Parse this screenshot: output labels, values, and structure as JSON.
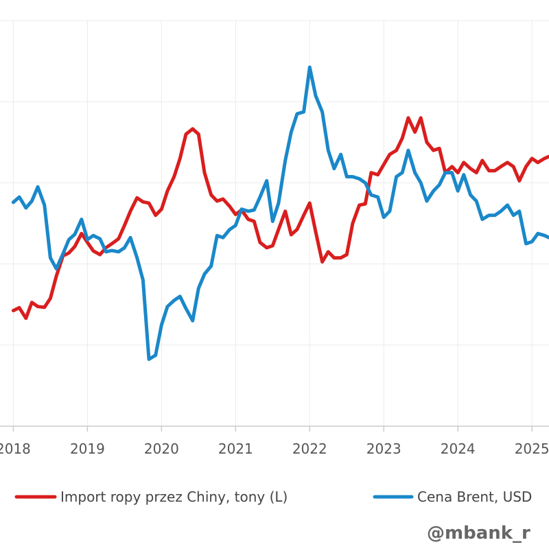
{
  "chart_data": {
    "type": "line",
    "title": "",
    "xlabel": "",
    "ylabel": "",
    "x_range": [
      2017.82,
      2025.23
    ],
    "x_ticks": [
      {
        "value": 2018,
        "label": "2018"
      },
      {
        "value": 2019,
        "label": "2019"
      },
      {
        "value": 2020,
        "label": "2020"
      },
      {
        "value": 2021,
        "label": "2021"
      },
      {
        "value": 2022,
        "label": "2022"
      },
      {
        "value": 2023,
        "label": "2023"
      },
      {
        "value": 2024,
        "label": "2024"
      },
      {
        "value": 2025,
        "label": "2025"
      }
    ],
    "y_range": [
      0,
      100
    ],
    "y_gridlines": [
      20,
      40,
      60,
      80,
      100
    ],
    "grid": true,
    "legend_position": "bottom",
    "series": [
      {
        "name": "Import ropy przez Chiny, tony (L)",
        "color": "#d91e1e",
        "points": [
          [
            2018.0,
            28.5
          ],
          [
            2018.08,
            29.2
          ],
          [
            2018.17,
            26.6
          ],
          [
            2018.25,
            30.5
          ],
          [
            2018.33,
            29.5
          ],
          [
            2018.42,
            29.3
          ],
          [
            2018.5,
            31.5
          ],
          [
            2018.58,
            37.0
          ],
          [
            2018.67,
            42.0
          ],
          [
            2018.75,
            42.7
          ],
          [
            2018.83,
            44.3
          ],
          [
            2018.92,
            47.5
          ],
          [
            2019.0,
            45.3
          ],
          [
            2019.08,
            43.2
          ],
          [
            2019.17,
            42.3
          ],
          [
            2019.25,
            44.0
          ],
          [
            2019.33,
            45.0
          ],
          [
            2019.42,
            46.2
          ],
          [
            2019.5,
            49.5
          ],
          [
            2019.58,
            53.0
          ],
          [
            2019.67,
            56.3
          ],
          [
            2019.75,
            55.3
          ],
          [
            2019.83,
            55.0
          ],
          [
            2019.92,
            52.0
          ],
          [
            2020.0,
            53.5
          ],
          [
            2020.08,
            58.0
          ],
          [
            2020.17,
            61.5
          ],
          [
            2020.25,
            66.0
          ],
          [
            2020.33,
            72.0
          ],
          [
            2020.42,
            73.3
          ],
          [
            2020.5,
            72.0
          ],
          [
            2020.58,
            62.5
          ],
          [
            2020.67,
            57.0
          ],
          [
            2020.75,
            55.5
          ],
          [
            2020.83,
            56.0
          ],
          [
            2020.92,
            54.2
          ],
          [
            2021.0,
            52.2
          ],
          [
            2021.08,
            53.3
          ],
          [
            2021.17,
            51.0
          ],
          [
            2021.25,
            50.5
          ],
          [
            2021.33,
            45.3
          ],
          [
            2021.42,
            44.0
          ],
          [
            2021.5,
            44.5
          ],
          [
            2021.58,
            48.5
          ],
          [
            2021.67,
            53.0
          ],
          [
            2021.75,
            47.2
          ],
          [
            2021.83,
            48.5
          ],
          [
            2021.92,
            52.0
          ],
          [
            2022.0,
            55.0
          ],
          [
            2022.08,
            48.0
          ],
          [
            2022.17,
            40.5
          ],
          [
            2022.25,
            43.0
          ],
          [
            2022.33,
            41.5
          ],
          [
            2022.42,
            41.5
          ],
          [
            2022.5,
            42.3
          ],
          [
            2022.58,
            50.0
          ],
          [
            2022.67,
            54.5
          ],
          [
            2022.75,
            54.8
          ],
          [
            2022.83,
            62.5
          ],
          [
            2022.92,
            62.0
          ],
          [
            2023.0,
            64.5
          ],
          [
            2023.08,
            67.0
          ],
          [
            2023.17,
            68.0
          ],
          [
            2023.25,
            71.0
          ],
          [
            2023.33,
            76.0
          ],
          [
            2023.42,
            72.5
          ],
          [
            2023.5,
            76.0
          ],
          [
            2023.58,
            70.0
          ],
          [
            2023.67,
            68.0
          ],
          [
            2023.75,
            68.5
          ],
          [
            2023.83,
            62.5
          ],
          [
            2023.92,
            64.0
          ],
          [
            2024.0,
            62.5
          ],
          [
            2024.08,
            65.0
          ],
          [
            2024.17,
            63.5
          ],
          [
            2024.25,
            62.5
          ],
          [
            2024.33,
            65.5
          ],
          [
            2024.42,
            63.0
          ],
          [
            2024.5,
            63.0
          ],
          [
            2024.58,
            64.0
          ],
          [
            2024.67,
            65.0
          ],
          [
            2024.75,
            64.0
          ],
          [
            2024.83,
            60.5
          ],
          [
            2024.92,
            64.0
          ],
          [
            2025.0,
            66.0
          ],
          [
            2025.08,
            65.0
          ],
          [
            2025.17,
            66.0
          ],
          [
            2025.23,
            66.5
          ]
        ]
      },
      {
        "name": "Cena Brent, USD",
        "color": "#1a88c9",
        "points": [
          [
            2018.0,
            55.2
          ],
          [
            2018.08,
            56.5
          ],
          [
            2018.17,
            53.8
          ],
          [
            2018.25,
            55.5
          ],
          [
            2018.33,
            59.0
          ],
          [
            2018.42,
            54.5
          ],
          [
            2018.5,
            41.5
          ],
          [
            2018.58,
            38.8
          ],
          [
            2018.67,
            42.5
          ],
          [
            2018.75,
            46.0
          ],
          [
            2018.83,
            47.3
          ],
          [
            2018.92,
            51.0
          ],
          [
            2019.0,
            46.0
          ],
          [
            2019.08,
            47.0
          ],
          [
            2019.17,
            46.2
          ],
          [
            2019.25,
            43.0
          ],
          [
            2019.33,
            43.3
          ],
          [
            2019.42,
            43.0
          ],
          [
            2019.5,
            44.0
          ],
          [
            2019.58,
            46.5
          ],
          [
            2019.67,
            41.5
          ],
          [
            2019.75,
            36.0
          ],
          [
            2019.83,
            16.5
          ],
          [
            2019.92,
            17.5
          ],
          [
            2020.0,
            25.0
          ],
          [
            2020.08,
            29.5
          ],
          [
            2020.17,
            31.0
          ],
          [
            2020.25,
            32.0
          ],
          [
            2020.33,
            29.0
          ],
          [
            2020.42,
            26.0
          ],
          [
            2020.5,
            34.0
          ],
          [
            2020.58,
            37.5
          ],
          [
            2020.67,
            39.5
          ],
          [
            2020.75,
            47.0
          ],
          [
            2020.83,
            46.5
          ],
          [
            2020.92,
            48.5
          ],
          [
            2021.0,
            49.5
          ],
          [
            2021.08,
            53.5
          ],
          [
            2021.17,
            53.0
          ],
          [
            2021.25,
            53.3
          ],
          [
            2021.33,
            56.5
          ],
          [
            2021.42,
            60.5
          ],
          [
            2021.5,
            50.5
          ],
          [
            2021.58,
            55.0
          ],
          [
            2021.67,
            65.5
          ],
          [
            2021.75,
            72.5
          ],
          [
            2021.83,
            77.0
          ],
          [
            2021.92,
            77.5
          ],
          [
            2022.0,
            88.5
          ],
          [
            2022.08,
            81.5
          ],
          [
            2022.17,
            77.5
          ],
          [
            2022.25,
            68.0
          ],
          [
            2022.33,
            63.5
          ],
          [
            2022.42,
            67.0
          ],
          [
            2022.5,
            61.5
          ],
          [
            2022.58,
            61.5
          ],
          [
            2022.67,
            61.0
          ],
          [
            2022.75,
            60.0
          ],
          [
            2022.83,
            57.0
          ],
          [
            2022.92,
            56.5
          ],
          [
            2023.0,
            51.5
          ],
          [
            2023.08,
            53.0
          ],
          [
            2023.17,
            61.5
          ],
          [
            2023.25,
            62.5
          ],
          [
            2023.33,
            68.0
          ],
          [
            2023.42,
            62.5
          ],
          [
            2023.5,
            60.0
          ],
          [
            2023.58,
            55.5
          ],
          [
            2023.67,
            58.0
          ],
          [
            2023.75,
            59.5
          ],
          [
            2023.83,
            62.5
          ],
          [
            2023.92,
            62.5
          ],
          [
            2024.0,
            58.0
          ],
          [
            2024.08,
            62.0
          ],
          [
            2024.17,
            57.0
          ],
          [
            2024.25,
            55.5
          ],
          [
            2024.33,
            51.0
          ],
          [
            2024.42,
            52.0
          ],
          [
            2024.5,
            52.0
          ],
          [
            2024.58,
            53.0
          ],
          [
            2024.67,
            54.5
          ],
          [
            2024.75,
            52.0
          ],
          [
            2024.83,
            53.0
          ],
          [
            2024.92,
            45.0
          ],
          [
            2025.0,
            45.5
          ],
          [
            2025.08,
            47.5
          ],
          [
            2025.17,
            47.0
          ],
          [
            2025.23,
            46.5
          ]
        ]
      }
    ],
    "watermark": "@mbank_r"
  }
}
